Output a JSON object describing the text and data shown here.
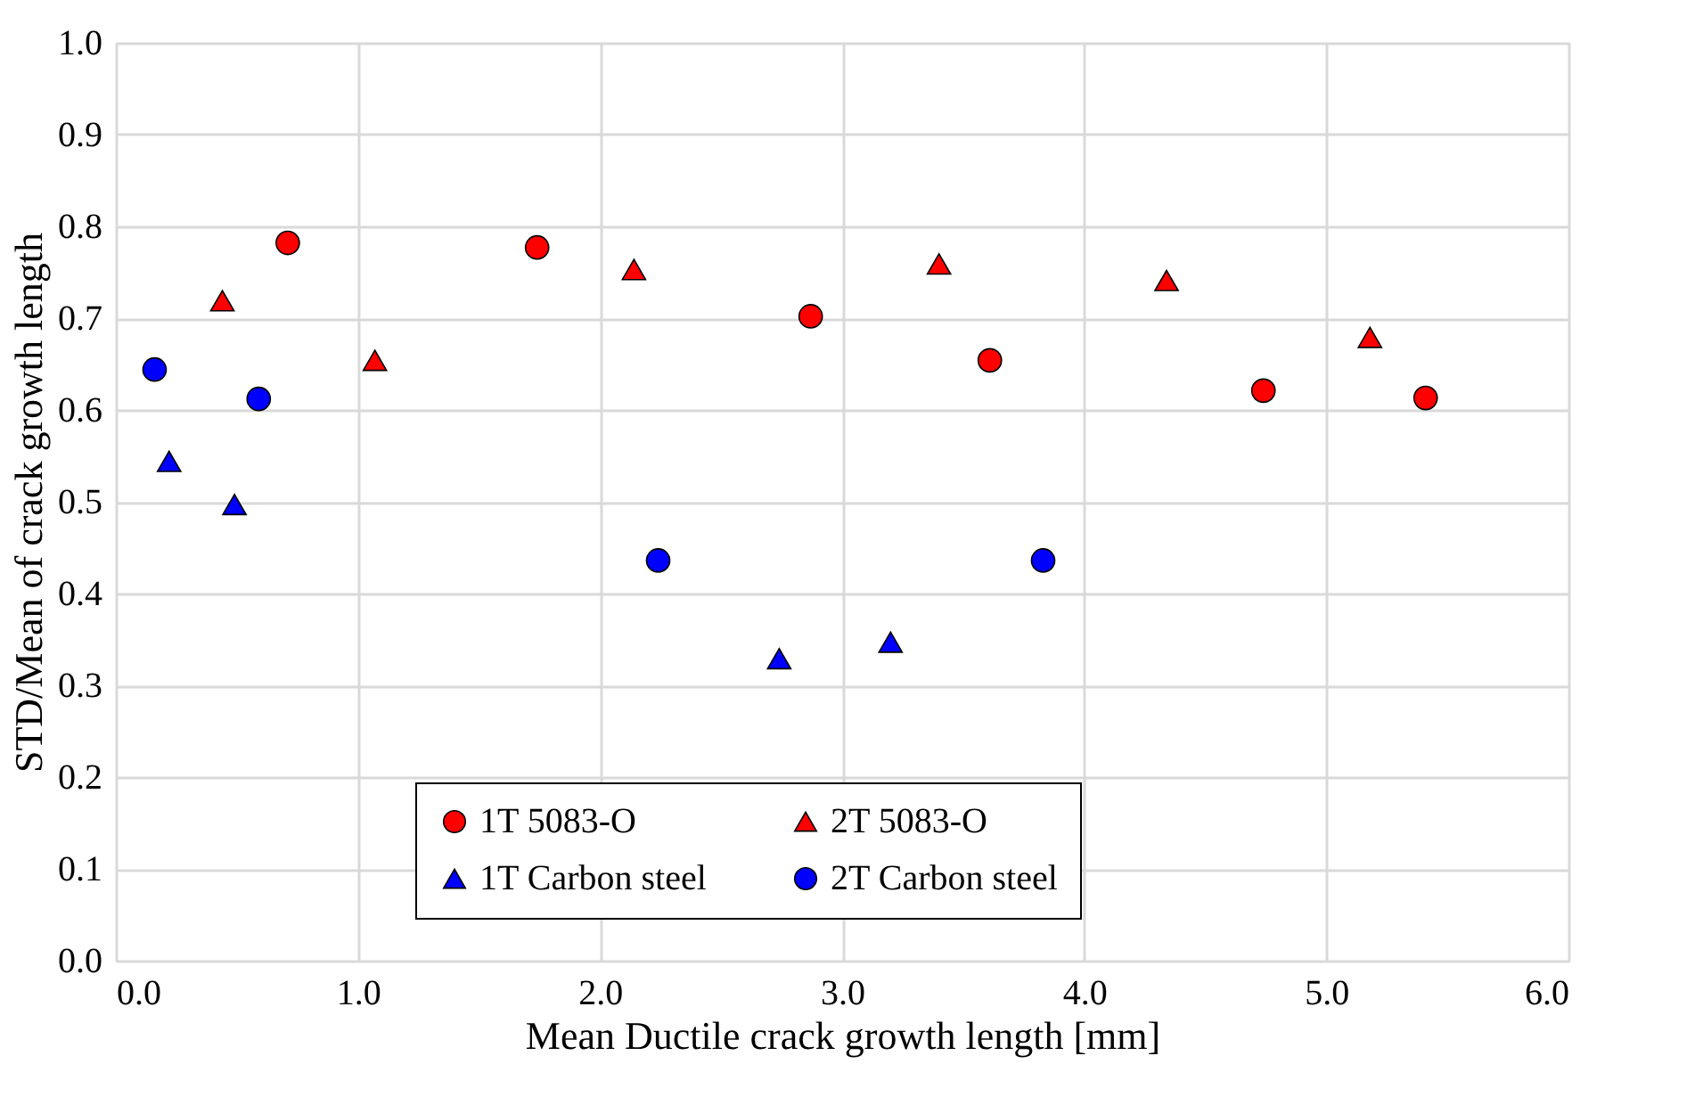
{
  "chart_data": {
    "type": "scatter",
    "xlabel": "Mean Ductile crack growth length [mm]",
    "ylabel": "STD/Mean of crack growth length",
    "xlim": [
      0,
      6
    ],
    "ylim": [
      0,
      1
    ],
    "xticks": [
      {
        "value": 0,
        "label": "0.0"
      },
      {
        "value": 1,
        "label": "1.0"
      },
      {
        "value": 2,
        "label": "2.0"
      },
      {
        "value": 3,
        "label": "3.0"
      },
      {
        "value": 4,
        "label": "4.0"
      },
      {
        "value": 5,
        "label": "5.0"
      },
      {
        "value": 6,
        "label": "6.0"
      }
    ],
    "yticks": [
      {
        "value": 0,
        "label": "0.0"
      },
      {
        "value": 0.1,
        "label": "0.1"
      },
      {
        "value": 0.2,
        "label": "0.2"
      },
      {
        "value": 0.3,
        "label": "0.3"
      },
      {
        "value": 0.4,
        "label": "0.4"
      },
      {
        "value": 0.5,
        "label": "0.5"
      },
      {
        "value": 0.6,
        "label": "0.6"
      },
      {
        "value": 0.7,
        "label": "0.7"
      },
      {
        "value": 0.8,
        "label": "0.8"
      },
      {
        "value": 0.9,
        "label": "0.9"
      },
      {
        "value": 1.0,
        "label": "1.0"
      }
    ],
    "grid": true,
    "legend": "bottom",
    "series": [
      {
        "name": "1T 5083-O",
        "color": "#ff0000",
        "marker": "circle",
        "x": [
          0.71,
          1.74,
          2.87,
          3.61,
          4.74,
          5.41
        ],
        "values": [
          0.782,
          0.777,
          0.702,
          0.654,
          0.621,
          0.613
        ]
      },
      {
        "name": "2T 5083-O",
        "color": "#ff0000",
        "marker": "triangle",
        "x": [
          0.44,
          1.07,
          2.14,
          3.4,
          4.34,
          5.18
        ],
        "values": [
          0.719,
          0.654,
          0.753,
          0.759,
          0.741,
          0.679
        ]
      },
      {
        "name": "1T Carbon steel",
        "color": "#0000ff",
        "marker": "triangle",
        "x": [
          0.22,
          0.49,
          2.74,
          3.2
        ],
        "values": [
          0.544,
          0.497,
          0.329,
          0.347
        ]
      },
      {
        "name": "2T Carbon steel",
        "color": "#0000ff",
        "marker": "circle",
        "x": [
          0.16,
          0.59,
          2.24,
          3.83
        ],
        "values": [
          0.644,
          0.612,
          0.436,
          0.436
        ]
      }
    ]
  }
}
